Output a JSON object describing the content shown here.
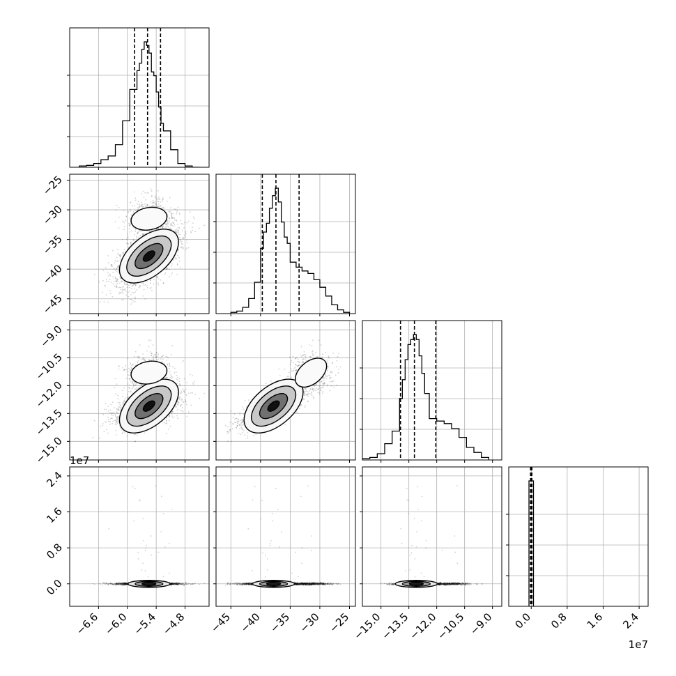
{
  "chart_data": {
    "type": "corner",
    "parameters": [
      {
        "id": "p0",
        "range": [
          -7.2,
          -4.3
        ],
        "ticks": [
          -6.6,
          -6.0,
          -5.4,
          -4.8
        ],
        "tick_labels": [
          "−6.6",
          "−6.0",
          "−5.4",
          "−4.8"
        ],
        "quantiles": [
          -5.85,
          -5.58,
          -5.31
        ],
        "hist_edges": [
          -7.0,
          -6.85,
          -6.7,
          -6.55,
          -6.4,
          -6.25,
          -6.1,
          -5.95,
          -5.8,
          -5.75,
          -5.7,
          -5.65,
          -5.6,
          -5.55,
          -5.5,
          -5.45,
          -5.4,
          -5.35,
          -5.3,
          -5.25,
          -5.1,
          -4.95,
          -4.8,
          -4.65,
          -4.5
        ],
        "hist_values": [
          0.01,
          0.015,
          0.03,
          0.06,
          0.09,
          0.18,
          0.37,
          0.62,
          0.77,
          0.83,
          0.94,
          1.0,
          0.97,
          0.91,
          0.76,
          0.73,
          0.6,
          0.48,
          0.35,
          0.29,
          0.14,
          0.03,
          0.01,
          0.0
        ]
      },
      {
        "id": "p1",
        "range": [
          -47.5,
          -24.0
        ],
        "ticks": [
          -45,
          -40,
          -35,
          -30,
          -25
        ],
        "tick_labels": [
          "−45",
          "−40",
          "−35",
          "−30",
          "−25"
        ],
        "quantiles": [
          -39.7,
          -37.4,
          -33.5
        ],
        "hist_edges": [
          -45.0,
          -44.0,
          -43.0,
          -42.0,
          -41.0,
          -40.0,
          -39.5,
          -39.0,
          -38.5,
          -38.0,
          -37.5,
          -37.0,
          -36.5,
          -36.0,
          -35.5,
          -35.0,
          -34.0,
          -33.0,
          -32.0,
          -31.0,
          -30.0,
          -29.0,
          -28.0,
          -27.0,
          -26.0,
          -25.0
        ],
        "hist_values": [
          0.01,
          0.02,
          0.05,
          0.12,
          0.25,
          0.52,
          0.65,
          0.72,
          0.84,
          0.94,
          1.0,
          0.89,
          0.73,
          0.61,
          0.56,
          0.41,
          0.37,
          0.34,
          0.32,
          0.27,
          0.21,
          0.14,
          0.07,
          0.03,
          0.01
        ]
      },
      {
        "id": "p2",
        "range": [
          -16.0,
          -8.5
        ],
        "ticks": [
          -15.0,
          -13.5,
          -12.0,
          -10.5,
          -9.0
        ],
        "tick_labels": [
          "−15.0",
          "−13.5",
          "−12.0",
          "−10.5",
          "−9.0"
        ],
        "quantiles": [
          -13.95,
          -13.2,
          -12.05
        ],
        "hist_edges": [
          -16.0,
          -15.6,
          -15.2,
          -14.8,
          -14.4,
          -14.0,
          -13.85,
          -13.7,
          -13.55,
          -13.4,
          -13.25,
          -13.1,
          -12.95,
          -12.8,
          -12.65,
          -12.4,
          -12.0,
          -11.6,
          -11.2,
          -10.8,
          -10.4,
          -10.0,
          -9.6,
          -9.2
        ],
        "hist_values": [
          0.01,
          0.02,
          0.05,
          0.13,
          0.23,
          0.49,
          0.64,
          0.8,
          0.92,
          0.96,
          1.0,
          0.96,
          0.83,
          0.69,
          0.53,
          0.33,
          0.31,
          0.29,
          0.25,
          0.18,
          0.1,
          0.06,
          0.02
        ]
      },
      {
        "id": "p3",
        "range": [
          -5000000,
          26000000
        ],
        "ticks": [
          0,
          8000000,
          16000000,
          24000000
        ],
        "tick_labels": [
          "0.0",
          "0.8",
          "1.6",
          "2.4"
        ],
        "quantiles": [
          -150000,
          0,
          150000
        ],
        "hist_edges": [
          -500000,
          500000
        ],
        "hist_values": [
          1.0
        ]
      }
    ],
    "offset_labels": {
      "p3_y": "1e7",
      "p3_x": "1e7"
    },
    "grid": true,
    "quantiles_style": "dashed"
  }
}
